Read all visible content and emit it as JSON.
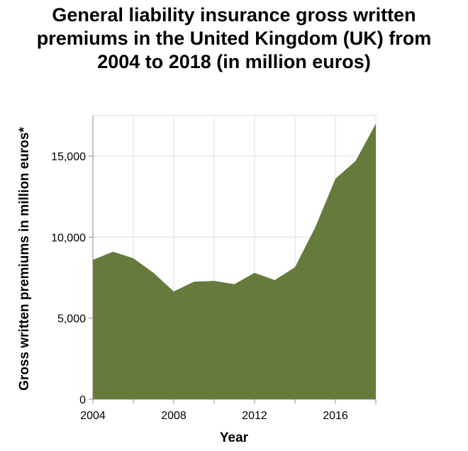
{
  "chart_data": {
    "type": "area",
    "title_lines": [
      "General liability insurance gross written",
      "premiums in the United Kingdom (UK) from",
      "2004 to 2018 (in million euros)"
    ],
    "xlabel": "Year",
    "ylabel": "Gross written premiums in million euros*",
    "x": [
      2004,
      2005,
      2006,
      2007,
      2008,
      2009,
      2010,
      2011,
      2012,
      2013,
      2014,
      2015,
      2016,
      2017,
      2018
    ],
    "values": [
      8600,
      9100,
      8700,
      7800,
      6650,
      7250,
      7300,
      7100,
      7800,
      7350,
      8150,
      10600,
      13600,
      14700,
      17000
    ],
    "xlim": [
      2004,
      2018
    ],
    "ylim": [
      0,
      17500
    ],
    "x_ticks": [
      2004,
      2008,
      2012,
      2016
    ],
    "x_tick_labels": [
      "2004",
      "2008",
      "2012",
      "2016"
    ],
    "y_ticks": [
      0,
      5000,
      10000,
      15000
    ],
    "y_tick_labels": [
      "0",
      "5,000",
      "10,000",
      "15,000"
    ],
    "grid": true,
    "fill_color": "#667a3b"
  }
}
